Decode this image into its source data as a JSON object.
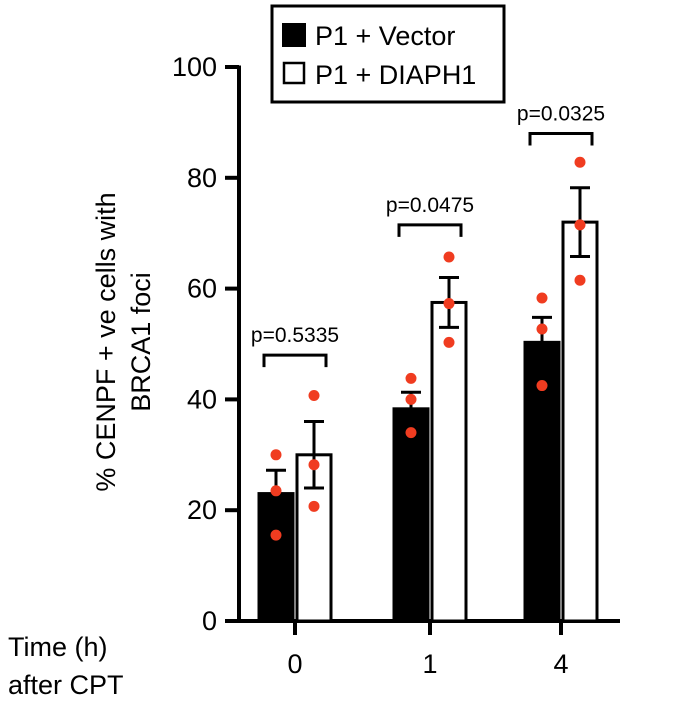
{
  "chart_data": {
    "type": "bar",
    "ylabel_lines": [
      "% CENPF + ve cells with",
      "BRCA1 foci"
    ],
    "xlabel_lines": [
      "Time (h)",
      "after CPT"
    ],
    "categories": [
      "0",
      "1",
      "4"
    ],
    "ylim": [
      0,
      100
    ],
    "yticks": [
      0,
      20,
      40,
      60,
      80,
      100
    ],
    "ytick_labels": [
      "0",
      "20",
      "40",
      "60",
      "80",
      "100"
    ],
    "grid": false,
    "legend_position": "top-center",
    "series": [
      {
        "name": "P1 + Vector",
        "fill": "#000000",
        "values": [
          23,
          38.3,
          50.3
        ],
        "errors": [
          4.2,
          3.0,
          4.5
        ],
        "points": [
          [
            30,
            23.5,
            15.5
          ],
          [
            43.8,
            40,
            34
          ],
          [
            58.3,
            52.7,
            42.5
          ]
        ]
      },
      {
        "name": "P1 + DIAPH1",
        "fill": "#ffffff",
        "values": [
          30,
          57.5,
          72
        ],
        "errors": [
          6,
          4.5,
          6.2
        ],
        "points": [
          [
            40.7,
            28.2,
            20.7
          ],
          [
            65.7,
            57.3,
            50.3
          ],
          [
            82.8,
            71.5,
            61.5
          ]
        ]
      }
    ],
    "point_color": "#f03c20",
    "annotations": [
      "p=0.5335",
      "p=0.0475",
      "p=0.0325"
    ]
  }
}
